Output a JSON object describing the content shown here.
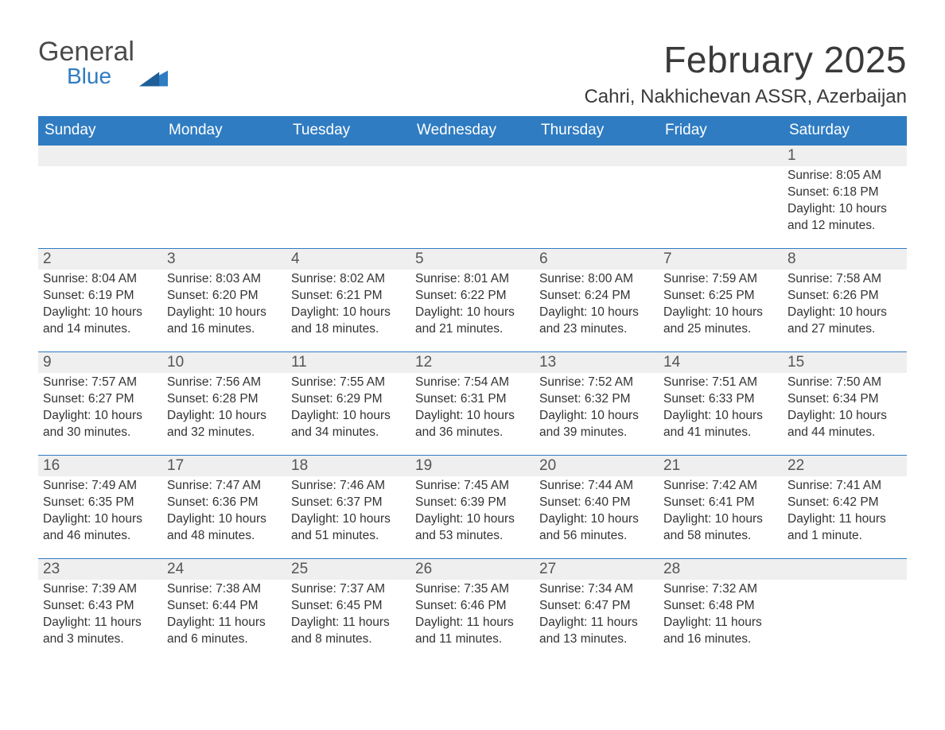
{
  "theme": {
    "header_bg": "#2f7cc2",
    "header_text": "#ffffff",
    "daynum_bg": "#efefef",
    "daynum_text": "#555555",
    "body_text": "#333333",
    "page_bg": "#ffffff",
    "row_border": "#2f7cc2",
    "title_color": "#3a3a3a",
    "logo_gray": "#4a4a4a",
    "logo_blue": "#2f7cc2"
  },
  "logo": {
    "line1": "General",
    "line2": "Blue"
  },
  "title": "February 2025",
  "location": "Cahri, Nakhichevan ASSR, Azerbaijan",
  "day_headers": [
    "Sunday",
    "Monday",
    "Tuesday",
    "Wednesday",
    "Thursday",
    "Friday",
    "Saturday"
  ],
  "weeks": [
    [
      null,
      null,
      null,
      null,
      null,
      null,
      {
        "day": "1",
        "sunrise": "Sunrise: 8:05 AM",
        "sunset": "Sunset: 6:18 PM",
        "daylight": "Daylight: 10 hours and 12 minutes."
      }
    ],
    [
      {
        "day": "2",
        "sunrise": "Sunrise: 8:04 AM",
        "sunset": "Sunset: 6:19 PM",
        "daylight": "Daylight: 10 hours and 14 minutes."
      },
      {
        "day": "3",
        "sunrise": "Sunrise: 8:03 AM",
        "sunset": "Sunset: 6:20 PM",
        "daylight": "Daylight: 10 hours and 16 minutes."
      },
      {
        "day": "4",
        "sunrise": "Sunrise: 8:02 AM",
        "sunset": "Sunset: 6:21 PM",
        "daylight": "Daylight: 10 hours and 18 minutes."
      },
      {
        "day": "5",
        "sunrise": "Sunrise: 8:01 AM",
        "sunset": "Sunset: 6:22 PM",
        "daylight": "Daylight: 10 hours and 21 minutes."
      },
      {
        "day": "6",
        "sunrise": "Sunrise: 8:00 AM",
        "sunset": "Sunset: 6:24 PM",
        "daylight": "Daylight: 10 hours and 23 minutes."
      },
      {
        "day": "7",
        "sunrise": "Sunrise: 7:59 AM",
        "sunset": "Sunset: 6:25 PM",
        "daylight": "Daylight: 10 hours and 25 minutes."
      },
      {
        "day": "8",
        "sunrise": "Sunrise: 7:58 AM",
        "sunset": "Sunset: 6:26 PM",
        "daylight": "Daylight: 10 hours and 27 minutes."
      }
    ],
    [
      {
        "day": "9",
        "sunrise": "Sunrise: 7:57 AM",
        "sunset": "Sunset: 6:27 PM",
        "daylight": "Daylight: 10 hours and 30 minutes."
      },
      {
        "day": "10",
        "sunrise": "Sunrise: 7:56 AM",
        "sunset": "Sunset: 6:28 PM",
        "daylight": "Daylight: 10 hours and 32 minutes."
      },
      {
        "day": "11",
        "sunrise": "Sunrise: 7:55 AM",
        "sunset": "Sunset: 6:29 PM",
        "daylight": "Daylight: 10 hours and 34 minutes."
      },
      {
        "day": "12",
        "sunrise": "Sunrise: 7:54 AM",
        "sunset": "Sunset: 6:31 PM",
        "daylight": "Daylight: 10 hours and 36 minutes."
      },
      {
        "day": "13",
        "sunrise": "Sunrise: 7:52 AM",
        "sunset": "Sunset: 6:32 PM",
        "daylight": "Daylight: 10 hours and 39 minutes."
      },
      {
        "day": "14",
        "sunrise": "Sunrise: 7:51 AM",
        "sunset": "Sunset: 6:33 PM",
        "daylight": "Daylight: 10 hours and 41 minutes."
      },
      {
        "day": "15",
        "sunrise": "Sunrise: 7:50 AM",
        "sunset": "Sunset: 6:34 PM",
        "daylight": "Daylight: 10 hours and 44 minutes."
      }
    ],
    [
      {
        "day": "16",
        "sunrise": "Sunrise: 7:49 AM",
        "sunset": "Sunset: 6:35 PM",
        "daylight": "Daylight: 10 hours and 46 minutes."
      },
      {
        "day": "17",
        "sunrise": "Sunrise: 7:47 AM",
        "sunset": "Sunset: 6:36 PM",
        "daylight": "Daylight: 10 hours and 48 minutes."
      },
      {
        "day": "18",
        "sunrise": "Sunrise: 7:46 AM",
        "sunset": "Sunset: 6:37 PM",
        "daylight": "Daylight: 10 hours and 51 minutes."
      },
      {
        "day": "19",
        "sunrise": "Sunrise: 7:45 AM",
        "sunset": "Sunset: 6:39 PM",
        "daylight": "Daylight: 10 hours and 53 minutes."
      },
      {
        "day": "20",
        "sunrise": "Sunrise: 7:44 AM",
        "sunset": "Sunset: 6:40 PM",
        "daylight": "Daylight: 10 hours and 56 minutes."
      },
      {
        "day": "21",
        "sunrise": "Sunrise: 7:42 AM",
        "sunset": "Sunset: 6:41 PM",
        "daylight": "Daylight: 10 hours and 58 minutes."
      },
      {
        "day": "22",
        "sunrise": "Sunrise: 7:41 AM",
        "sunset": "Sunset: 6:42 PM",
        "daylight": "Daylight: 11 hours and 1 minute."
      }
    ],
    [
      {
        "day": "23",
        "sunrise": "Sunrise: 7:39 AM",
        "sunset": "Sunset: 6:43 PM",
        "daylight": "Daylight: 11 hours and 3 minutes."
      },
      {
        "day": "24",
        "sunrise": "Sunrise: 7:38 AM",
        "sunset": "Sunset: 6:44 PM",
        "daylight": "Daylight: 11 hours and 6 minutes."
      },
      {
        "day": "25",
        "sunrise": "Sunrise: 7:37 AM",
        "sunset": "Sunset: 6:45 PM",
        "daylight": "Daylight: 11 hours and 8 minutes."
      },
      {
        "day": "26",
        "sunrise": "Sunrise: 7:35 AM",
        "sunset": "Sunset: 6:46 PM",
        "daylight": "Daylight: 11 hours and 11 minutes."
      },
      {
        "day": "27",
        "sunrise": "Sunrise: 7:34 AM",
        "sunset": "Sunset: 6:47 PM",
        "daylight": "Daylight: 11 hours and 13 minutes."
      },
      {
        "day": "28",
        "sunrise": "Sunrise: 7:32 AM",
        "sunset": "Sunset: 6:48 PM",
        "daylight": "Daylight: 11 hours and 16 minutes."
      },
      null
    ]
  ]
}
